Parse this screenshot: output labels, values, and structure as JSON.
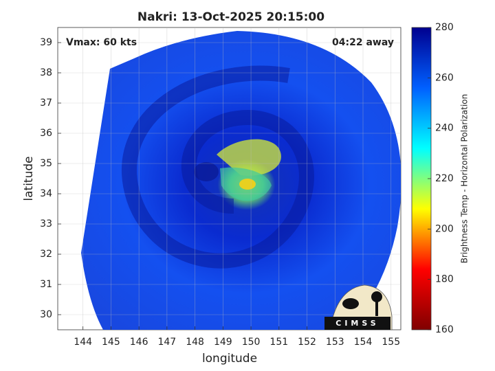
{
  "chart_data": {
    "type": "image",
    "title": "Nakri: 13-Oct-2025 20:15:00",
    "xlabel": "longitude",
    "ylabel": "latitude",
    "xlim": [
      143.1,
      155.35
    ],
    "ylim": [
      29.5,
      39.5
    ],
    "xticks": [
      144,
      145,
      146,
      147,
      148,
      149,
      150,
      151,
      152,
      153,
      154,
      155
    ],
    "yticks": [
      30,
      31,
      32,
      33,
      34,
      35,
      36,
      37,
      38,
      39
    ],
    "grid": true,
    "annotations": [
      "Vmax: 60 kts",
      "04:22 away"
    ],
    "logo": "CIMSS",
    "colorbar": {
      "label": "Brightness Temp - Horizontal Polarization",
      "lim": [
        160,
        280
      ],
      "ticks": [
        160,
        180,
        200,
        220,
        240,
        260,
        280
      ],
      "colormap": [
        "#800000",
        "#ff0000",
        "#ffff00",
        "#00ffff",
        "#0060ff",
        "#00008f"
      ]
    }
  }
}
